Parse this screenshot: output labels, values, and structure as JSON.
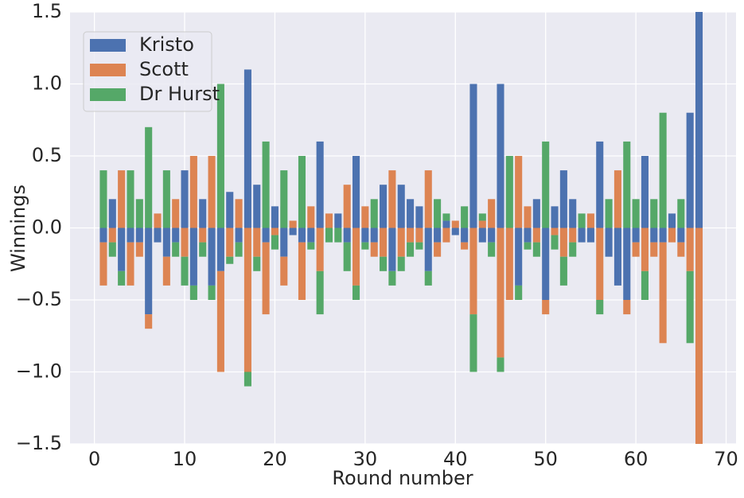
{
  "chart_data": {
    "type": "bar",
    "stacked": true,
    "xlabel": "Round number",
    "ylabel": "Winnings",
    "x": [
      1,
      2,
      3,
      4,
      5,
      6,
      7,
      8,
      9,
      10,
      11,
      12,
      13,
      14,
      15,
      16,
      17,
      18,
      19,
      20,
      21,
      22,
      23,
      24,
      25,
      26,
      27,
      28,
      29,
      30,
      31,
      32,
      33,
      34,
      35,
      36,
      37,
      38,
      39,
      40,
      41,
      42,
      43,
      44,
      45,
      46,
      47,
      48,
      49,
      50,
      51,
      52,
      53,
      54,
      55,
      56,
      57,
      58,
      59,
      60,
      61,
      62,
      63,
      64,
      65,
      66,
      67
    ],
    "series": [
      {
        "name": "Kristo",
        "color": "#4c72b0",
        "values": [
          -0.1,
          0.2,
          -0.3,
          -0.1,
          -0.1,
          -0.6,
          -0.1,
          -0.2,
          -0.1,
          0.4,
          -0.4,
          0.2,
          -0.4,
          -0.3,
          0.25,
          -0.1,
          1.1,
          0.3,
          -0.1,
          0.15,
          -0.2,
          -0.05,
          -0.1,
          -0.1,
          0.6,
          0,
          0.1,
          -0.1,
          0.5,
          -0.1,
          -0.1,
          0.3,
          -0.3,
          0.3,
          0.2,
          0.15,
          -0.3,
          -0.1,
          0.05,
          -0.05,
          -0.1,
          1.0,
          -0.1,
          -0.1,
          1.0,
          0,
          -0.4,
          -0.1,
          0.2,
          -0.5,
          0.15,
          0.4,
          0.2,
          -0.1,
          -0.1,
          0.6,
          -0.2,
          -0.4,
          -0.5,
          -0.1,
          0.5,
          -0.1,
          -0.1,
          0.1,
          -0.1,
          0.8,
          1.5
        ]
      },
      {
        "name": "Scott",
        "color": "#dd8452",
        "values": [
          -0.3,
          -0.1,
          0.4,
          -0.3,
          -0.1,
          -0.1,
          0.1,
          -0.2,
          0.2,
          -0.2,
          0.5,
          -0.1,
          0.5,
          -0.7,
          -0.2,
          0.2,
          -1.0,
          -0.2,
          -0.5,
          -0.05,
          -0.2,
          0.05,
          -0.4,
          0.15,
          -0.3,
          0.1,
          0,
          0.3,
          -0.4,
          0.15,
          -0.1,
          -0.2,
          0.4,
          -0.2,
          -0.1,
          -0.1,
          0.4,
          -0.1,
          -0.1,
          0.05,
          -0.05,
          -0.6,
          0.05,
          0.2,
          -0.9,
          -0.5,
          0.5,
          0.15,
          -0.1,
          -0.1,
          -0.05,
          -0.2,
          -0.1,
          0,
          0.1,
          -0.5,
          0,
          0.4,
          -0.1,
          -0.1,
          -0.3,
          -0.1,
          -0.7,
          -0.1,
          -0.1,
          -0.3,
          -1.5
        ]
      },
      {
        "name": "Dr Hurst",
        "color": "#55a868",
        "values": [
          0.4,
          -0.1,
          -0.1,
          0.4,
          0.2,
          0.7,
          0,
          0.4,
          -0.1,
          -0.2,
          -0.1,
          -0.1,
          -0.1,
          1.0,
          -0.05,
          -0.1,
          -0.1,
          -0.1,
          0.6,
          -0.1,
          0.4,
          0,
          0.5,
          -0.05,
          -0.3,
          -0.1,
          -0.1,
          -0.2,
          -0.1,
          -0.05,
          0.2,
          -0.1,
          -0.1,
          -0.1,
          -0.1,
          -0.05,
          -0.1,
          0.2,
          0.05,
          0,
          0.15,
          -0.4,
          0.05,
          -0.1,
          -0.1,
          0.5,
          -0.1,
          -0.05,
          -0.1,
          0.6,
          -0.1,
          -0.2,
          -0.1,
          0.1,
          0,
          -0.1,
          0.2,
          0,
          0.6,
          0.2,
          -0.2,
          0.2,
          0.8,
          0,
          0.2,
          -0.5,
          0
        ]
      }
    ],
    "xlim": [
      -2.7,
      71.1
    ],
    "xticks": [
      0,
      10,
      20,
      30,
      40,
      50,
      60,
      70
    ],
    "ylim": [
      -1.5,
      1.5
    ],
    "yticks": [
      {
        "value": -1.5,
        "label": "−1.5"
      },
      {
        "value": -1.0,
        "label": "−1.0"
      },
      {
        "value": -0.5,
        "label": "−0.5"
      },
      {
        "value": 0,
        "label": "0.0"
      },
      0.5,
      {
        "value": 1.0,
        "label": "1.0"
      },
      1.5
    ],
    "bar_width": 0.8,
    "grid": true,
    "legend": "upper-left"
  }
}
